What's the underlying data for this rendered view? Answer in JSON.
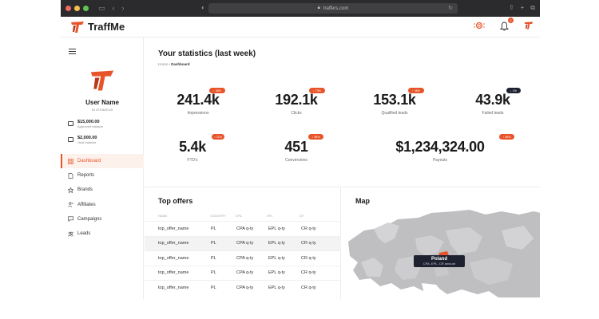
{
  "browser": {
    "url": "traffers.com",
    "traffic_lights": [
      "#ec6a5e",
      "#f4bf4f",
      "#61c554"
    ]
  },
  "app": {
    "brand_name": "TraffMe",
    "notification_count": "2",
    "accent_color": "#e8542a"
  },
  "user": {
    "name": "User Name",
    "id": "ID 473 629 U3",
    "balances": [
      {
        "amount": "$15,000.00",
        "label": "Approved balance"
      },
      {
        "amount": "$2,000.00",
        "label": "Hold balance"
      }
    ]
  },
  "nav": [
    {
      "label": "Dashboard",
      "icon": "grid-icon",
      "active": true
    },
    {
      "label": "Reports",
      "icon": "document-icon"
    },
    {
      "label": "Brands",
      "icon": "star-icon"
    },
    {
      "label": "Affiliates",
      "icon": "user-plus-icon"
    },
    {
      "label": "Campaigns",
      "icon": "chat-icon"
    },
    {
      "label": "Leads",
      "icon": "users-icon"
    }
  ],
  "page": {
    "title": "Your statistics (last week)",
    "breadcrumb_home": "Home",
    "breadcrumb_current": "Dashboard"
  },
  "stats": [
    {
      "value": "241.4k",
      "label": "Impressions",
      "badge": "↑ 36%"
    },
    {
      "value": "192.1k",
      "label": "Clicks",
      "badge": "↑ 73%"
    },
    {
      "value": "153.1k",
      "label": "Qualified leads",
      "badge": "↑ 36%"
    },
    {
      "value": "43.9k",
      "label": "Failed leads",
      "badge": "↓ 1%"
    },
    {
      "value": "5.4k",
      "label": "FTD's",
      "badge": "↑ 11%"
    },
    {
      "value": "451",
      "label": "Conversions",
      "badge": "↑ 36%"
    },
    {
      "value": "$1,234,324.00",
      "label": "Payouts",
      "badge": "↑ 36%"
    }
  ],
  "top_offers": {
    "title": "Top offers",
    "columns": [
      "NAME",
      "COUNTRY",
      "CPA",
      "EPL",
      "CR"
    ],
    "rows": [
      [
        "top_offer_name",
        "PL",
        "CPA q-ty",
        "EPL q-ty",
        "CR q-ty"
      ],
      [
        "top_offer_name",
        "PL",
        "CPA q-ty",
        "EPL q-ty",
        "CR q-ty"
      ],
      [
        "top_offer_name",
        "PL",
        "CPA q-ty",
        "EPL q-ty",
        "CR q-ty"
      ],
      [
        "top_offer_name",
        "PL",
        "CPA q-ty",
        "EPL q-ty",
        "CR q-ty"
      ],
      [
        "top_offer_name",
        "PL",
        "CPA q-ty",
        "EPL q-ty",
        "CR q-ty"
      ]
    ]
  },
  "map": {
    "title": "Map",
    "tooltip_title": "Poland",
    "tooltip_sub": "CPA, EPL, CR amount"
  }
}
